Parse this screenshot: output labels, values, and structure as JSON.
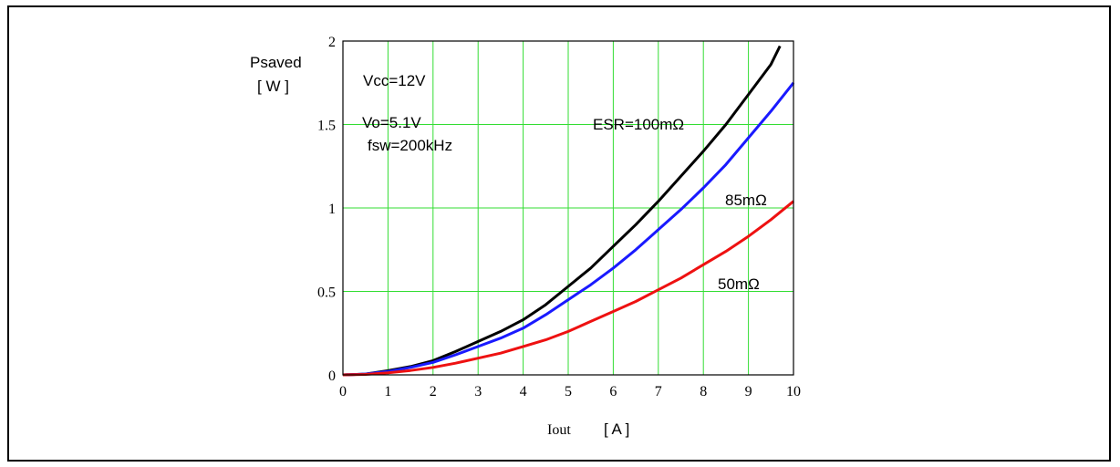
{
  "chart_data": {
    "type": "line",
    "ylabel": "Psaved",
    "ylabel_unit": "[ W ]",
    "xlabel": "Iout",
    "xlabel_unit": "[ A ]",
    "xlim": [
      0,
      10
    ],
    "ylim": [
      0,
      2
    ],
    "x_ticks": [
      "0",
      "1",
      "2",
      "3",
      "4",
      "5",
      "6",
      "7",
      "8",
      "9",
      "10"
    ],
    "y_ticks": [
      "0",
      "0.5",
      "1",
      "1.5",
      "2"
    ],
    "grid": true,
    "grid_color": "#33dd33",
    "annotations": {
      "vcc": "Vcc=12V",
      "vo": "Vo=5.1V",
      "fsw": "fsw=200kHz"
    },
    "series": [
      {
        "name": "ESR=100mΩ",
        "color": "#000000",
        "x": [
          0,
          0.5,
          1,
          1.5,
          2,
          2.5,
          3,
          3.5,
          4,
          4.5,
          5,
          5.5,
          6,
          6.5,
          7,
          7.5,
          8,
          8.5,
          9,
          9.5,
          9.7
        ],
        "y": [
          0,
          0.005,
          0.025,
          0.05,
          0.085,
          0.14,
          0.2,
          0.26,
          0.33,
          0.42,
          0.53,
          0.64,
          0.77,
          0.9,
          1.04,
          1.19,
          1.34,
          1.5,
          1.68,
          1.86,
          1.97
        ]
      },
      {
        "name": "85mΩ",
        "color": "#1a1aff",
        "x": [
          0,
          0.5,
          1,
          1.5,
          2,
          2.5,
          3,
          3.5,
          4,
          4.5,
          5,
          5.5,
          6,
          6.5,
          7,
          7.5,
          8,
          8.5,
          9,
          9.5,
          10
        ],
        "y": [
          0,
          0.005,
          0.02,
          0.045,
          0.075,
          0.12,
          0.17,
          0.22,
          0.28,
          0.36,
          0.45,
          0.54,
          0.64,
          0.75,
          0.87,
          0.99,
          1.12,
          1.26,
          1.42,
          1.58,
          1.75
        ]
      },
      {
        "name": "50mΩ",
        "color": "#ee1111",
        "x": [
          0,
          0.5,
          1,
          1.5,
          2,
          2.5,
          3,
          3.5,
          4,
          4.5,
          5,
          5.5,
          6,
          6.5,
          7,
          7.5,
          8,
          8.5,
          9,
          9.5,
          10
        ],
        "y": [
          0,
          0.003,
          0.012,
          0.026,
          0.045,
          0.07,
          0.1,
          0.13,
          0.17,
          0.21,
          0.26,
          0.32,
          0.38,
          0.44,
          0.51,
          0.58,
          0.66,
          0.74,
          0.83,
          0.93,
          1.04
        ]
      }
    ],
    "series_labels": [
      "ESR=100mΩ",
      "85mΩ",
      "50mΩ"
    ]
  }
}
